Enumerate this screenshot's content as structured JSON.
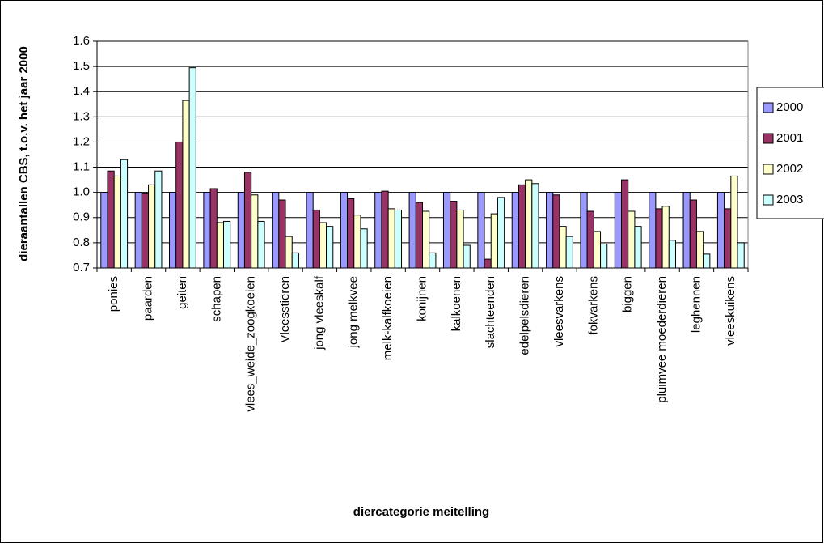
{
  "chart_data": {
    "type": "bar",
    "y_label": "dieraantallen CBS, t.o.v. het jaar 2000",
    "x_label": "diercategorie meitelling",
    "categories": [
      "ponies",
      "paarden",
      "geiten",
      "schapen",
      "vlees_weide_zoogkoeien",
      "Vleesstieren",
      "jong vleeskalf",
      "jong melkvee",
      "melk-kalfkoeien",
      "konijnen",
      "kalkoenen",
      "slachteenden",
      "edelpelsdieren",
      "vleesvarkens",
      "fokvarkens",
      "biggen",
      "pluimvee moederdieren",
      "leghennen",
      "vleeskuikens"
    ],
    "series": [
      {
        "name": "2000",
        "color": "#9999ff",
        "values": [
          1.0,
          1.0,
          1.0,
          1.0,
          1.0,
          1.0,
          1.0,
          1.0,
          1.0,
          1.0,
          1.0,
          1.0,
          1.0,
          1.0,
          1.0,
          1.0,
          1.0,
          1.0,
          1.0
        ]
      },
      {
        "name": "2001",
        "color": "#993366",
        "values": [
          1.085,
          0.995,
          1.2,
          1.015,
          1.08,
          0.97,
          0.93,
          0.975,
          1.005,
          0.96,
          0.965,
          0.735,
          1.03,
          0.99,
          0.925,
          1.05,
          0.935,
          0.97,
          0.935
        ]
      },
      {
        "name": "2002",
        "color": "#ffffcc",
        "values": [
          1.065,
          1.03,
          1.365,
          0.88,
          0.99,
          0.825,
          0.88,
          0.91,
          0.935,
          0.925,
          0.93,
          0.915,
          1.05,
          0.865,
          0.845,
          0.925,
          0.945,
          0.845,
          1.065
        ]
      },
      {
        "name": "2003",
        "color": "#ccffff",
        "values": [
          1.13,
          1.085,
          1.495,
          0.885,
          0.885,
          0.76,
          0.865,
          0.855,
          0.93,
          0.76,
          0.79,
          0.98,
          1.035,
          0.825,
          0.795,
          0.865,
          0.81,
          0.755,
          0.8
        ]
      }
    ],
    "ylim": [
      0.7,
      1.6
    ],
    "yticks": [
      0.7,
      0.8,
      0.9,
      {
        "value": 1.0,
        "label": "1.0"
      },
      1.1,
      1.2,
      1.3,
      1.4,
      1.5,
      1.6
    ],
    "grid": true,
    "legend": "right"
  }
}
